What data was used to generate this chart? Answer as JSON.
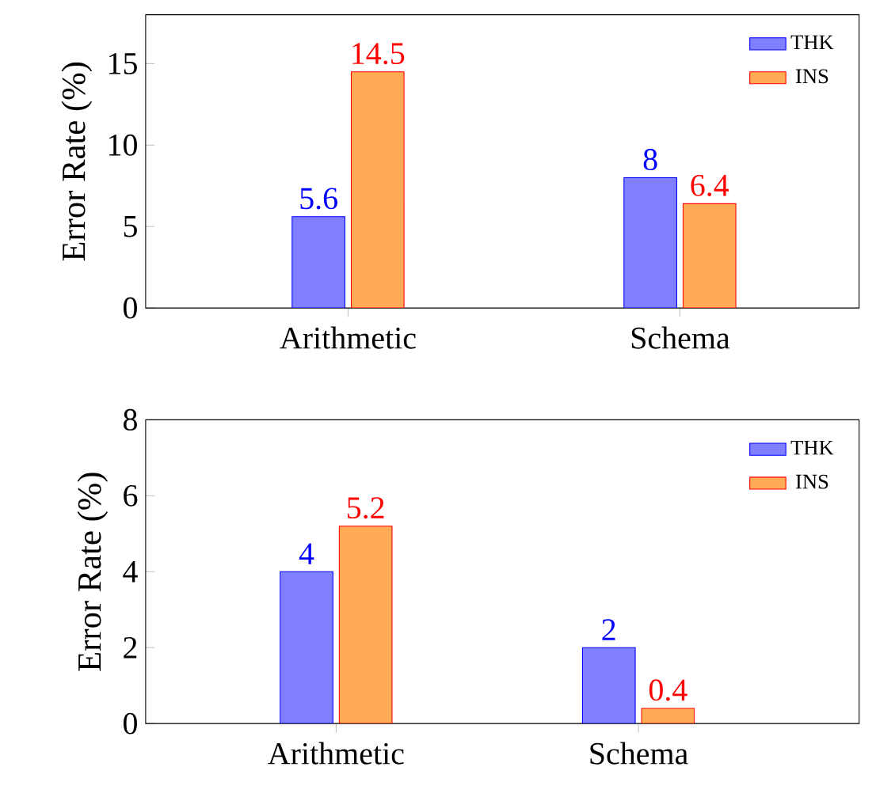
{
  "chart_data": [
    {
      "type": "bar",
      "ylabel": "Error Rate (%)",
      "categories": [
        "Arithmetic",
        "Schema"
      ],
      "series": [
        {
          "name": "THK",
          "color": "#7f7fff",
          "values": [
            5.6,
            8
          ]
        },
        {
          "name": "INS",
          "color": "#ffaa55",
          "values": [
            14.5,
            6.4
          ]
        }
      ],
      "ylim": [
        0,
        18
      ],
      "yticks": [
        0,
        5,
        10,
        15
      ],
      "data_labels": true,
      "legend": "top right"
    },
    {
      "type": "bar",
      "ylabel": "Error Rate (%)",
      "categories": [
        "Arithmetic",
        "Schema"
      ],
      "series": [
        {
          "name": "THK",
          "color": "#7f7fff",
          "values": [
            4,
            2
          ]
        },
        {
          "name": "INS",
          "color": "#ffaa55",
          "values": [
            5.2,
            0.4
          ]
        }
      ],
      "ylim": [
        0,
        8
      ],
      "yticks": [
        0,
        2,
        4,
        6,
        8
      ],
      "data_labels": true,
      "legend": "top right"
    }
  ]
}
